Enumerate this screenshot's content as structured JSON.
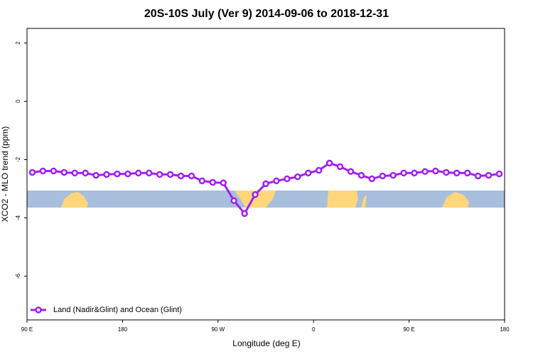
{
  "chart_data": {
    "type": "line",
    "title": "20S-10S July (Ver 9)   2014-09-06 to 2018-12-31",
    "x_label": "Longitude (deg E)",
    "y_label": "XCO2 - MLO trend (ppm)",
    "x": [
      95,
      105,
      115,
      125,
      135,
      145,
      155,
      165,
      175,
      185,
      195,
      205,
      215,
      225,
      235,
      245,
      255,
      265,
      275,
      285,
      295,
      305,
      315,
      325,
      335,
      345,
      355,
      365,
      375,
      385,
      395,
      405,
      415,
      425,
      435,
      445,
      455,
      465,
      475,
      485,
      495,
      505,
      515,
      525,
      535
    ],
    "series": [
      {
        "name": "Land (Nadir&Glint) and Ocean (Glint)",
        "color": "#a020f0",
        "values": [
          -2.44,
          -2.39,
          -2.39,
          -2.44,
          -2.46,
          -2.46,
          -2.54,
          -2.51,
          -2.49,
          -2.49,
          -2.46,
          -2.46,
          -2.51,
          -2.51,
          -2.56,
          -2.56,
          -2.73,
          -2.78,
          -2.8,
          -3.41,
          -3.85,
          -3.2,
          -2.83,
          -2.73,
          -2.66,
          -2.59,
          -2.46,
          -2.37,
          -2.12,
          -2.24,
          -2.41,
          -2.54,
          -2.66,
          -2.56,
          -2.54,
          -2.46,
          -2.46,
          -2.41,
          -2.39,
          -2.44,
          -2.46,
          -2.46,
          -2.56,
          -2.54,
          -2.49
        ]
      }
    ],
    "xlim": [
      90,
      540
    ],
    "xticks": [
      {
        "value": 90,
        "label": "90 E"
      },
      180,
      {
        "value": 270,
        "label": "90 W"
      },
      {
        "value": 360,
        "label": "0"
      },
      {
        "value": 450,
        "label": "90 E"
      },
      {
        "value": 540,
        "label": "180"
      }
    ],
    "ylim": [
      -7.5,
      2.5
    ],
    "yticks": [
      -6,
      -4,
      -2,
      0,
      2
    ],
    "legend": "bottom-left"
  }
}
